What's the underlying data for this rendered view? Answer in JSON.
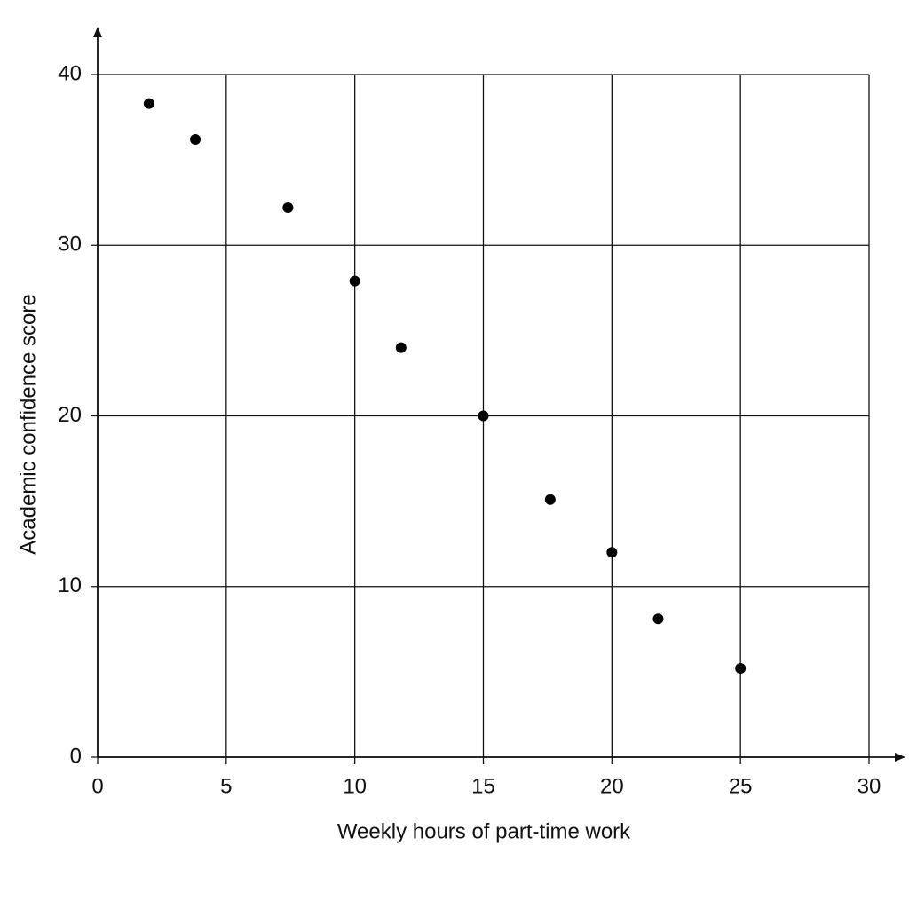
{
  "chart_data": {
    "type": "scatter",
    "x_label": "Weekly hours of part-time work",
    "y_label": "Academic confidence score",
    "x": [
      2.0,
      3.8,
      7.4,
      10,
      11.8,
      15,
      17.6,
      20,
      21.8,
      25
    ],
    "values": [
      38.3,
      36.2,
      32.2,
      27.9,
      24.0,
      20,
      15.1,
      12.0,
      8.1,
      5.2
    ],
    "color": "#000000",
    "xlim": [
      0,
      30
    ],
    "xticks": [
      0,
      5,
      10,
      15,
      20,
      25,
      30
    ],
    "ylim": [
      0,
      40
    ],
    "yticks": [
      0,
      10,
      20,
      30,
      40
    ],
    "grid": true
  }
}
